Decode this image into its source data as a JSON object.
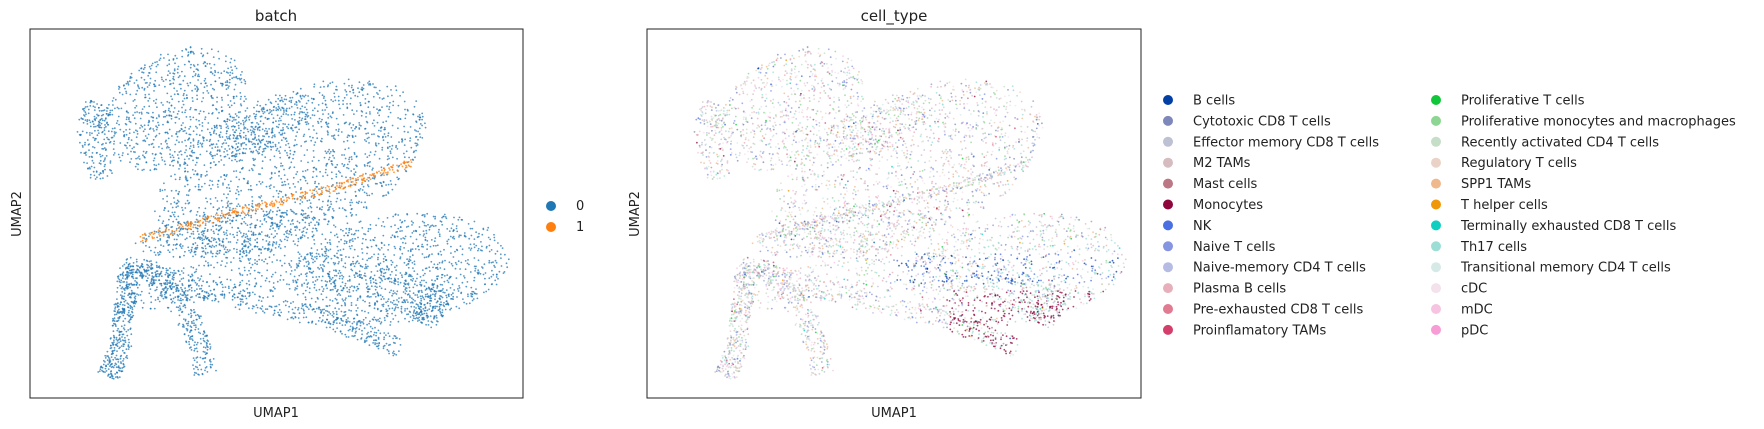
{
  "chart_data": [
    {
      "type": "scatter",
      "title": "batch",
      "xlabel": "UMAP1",
      "ylabel": "UMAP2",
      "legend_placement": "right",
      "grid": false,
      "series": [
        {
          "name": "0",
          "color": "#1f77b4"
        },
        {
          "name": "1",
          "color": "#ff7f0e"
        }
      ]
    },
    {
      "type": "scatter",
      "title": "cell_type",
      "xlabel": "UMAP1",
      "ylabel": "UMAP2",
      "legend_placement": "right",
      "grid": false,
      "series": [
        {
          "name": "B cells",
          "color": "#023fa5"
        },
        {
          "name": "Cytotoxic CD8 T cells",
          "color": "#7d87b9"
        },
        {
          "name": "Effector memory CD8 T cells",
          "color": "#bec1d4"
        },
        {
          "name": "M2 TAMs",
          "color": "#d6bcc0"
        },
        {
          "name": "Mast cells",
          "color": "#bb7784"
        },
        {
          "name": "Monocytes",
          "color": "#8e063b"
        },
        {
          "name": "NK",
          "color": "#4a6fe3"
        },
        {
          "name": "Naive T cells",
          "color": "#8595e1"
        },
        {
          "name": "Naive-memory CD4 T cells",
          "color": "#b5bbe3"
        },
        {
          "name": "Plasma B cells",
          "color": "#e6afb9"
        },
        {
          "name": "Pre-exhausted CD8 T cells",
          "color": "#e07b91"
        },
        {
          "name": "Proinflamatory TAMs",
          "color": "#d33f6a"
        },
        {
          "name": "Proliferative T cells",
          "color": "#11c638"
        },
        {
          "name": "Proliferative monocytes and macrophages",
          "color": "#8dd593"
        },
        {
          "name": "Recently activated CD4 T cells",
          "color": "#c6dec7"
        },
        {
          "name": "Regulatory T cells",
          "color": "#ead3c6"
        },
        {
          "name": "SPP1 TAMs",
          "color": "#f0b98d"
        },
        {
          "name": "T helper cells",
          "color": "#ef9708"
        },
        {
          "name": "Terminally exhausted CD8 T cells",
          "color": "#0fcfc0"
        },
        {
          "name": "Th17 cells",
          "color": "#9cded6"
        },
        {
          "name": "Transitional memory CD4 T cells",
          "color": "#d5eae7"
        },
        {
          "name": "cDC",
          "color": "#f3e1eb"
        },
        {
          "name": "mDC",
          "color": "#f6c4e1"
        },
        {
          "name": "pDC",
          "color": "#f79cd4"
        }
      ]
    }
  ]
}
